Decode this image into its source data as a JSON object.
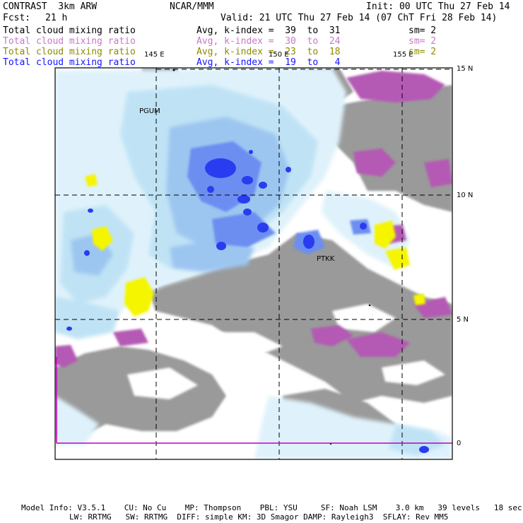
{
  "header": {
    "model": "CONTRAST  3km ARW",
    "center": "NCAR/MMM",
    "init": "Init: 00 UTC Thu 27 Feb 14",
    "fcst_label": "Fcst:",
    "fcst_value": "21 h",
    "valid": "Valid: 21 UTC Thu 27 Feb 14 (07 ChT Fri 28 Feb 14)"
  },
  "legend": [
    {
      "field": "Total cloud mixing ratio",
      "kindex": "Avg, k-index =  39  to  31",
      "sm": "sm= 2",
      "color": "#000000"
    },
    {
      "field": "Total cloud mixing ratio",
      "kindex": "Avg, k-index =  30  to  24",
      "sm": "sm= 2",
      "color": "#c878c8"
    },
    {
      "field": "Total cloud mixing ratio",
      "kindex": "Avg, k-index =  23  to  18",
      "sm": "sm= 2",
      "color": "#8c8c00"
    },
    {
      "field": "Total cloud mixing ratio",
      "kindex": "Avg, k-index =  19  to   4",
      "sm": "",
      "color": "#1414ff"
    }
  ],
  "map": {
    "lon_labels": [
      "145 E",
      "150 E",
      "155 E"
    ],
    "lat_labels": [
      "15 N",
      "10 N",
      "5 N",
      "0"
    ],
    "stations": [
      "PGUM",
      "PTKK"
    ],
    "colors": {
      "ocean_light": "#dff2fb",
      "cloud_light": "#bfe3f5",
      "cloud_mid": "#9cc6f0",
      "cloud_deep": "#6c8ef0",
      "cloud_core": "#2a3cf0",
      "grey_cloud": "#9a9a9a",
      "purple_cloud": "#b45ab4",
      "yellow_cloud": "#f5f500"
    }
  },
  "footer": {
    "line1": "Model Info: V3.5.1    CU: No Cu    MP: Thompson    PBL: YSU     SF: Noah LSM    3.0 km   39 levels   18 sec",
    "line2": "LW: RRTMG   SW: RRTMG  DIFF: simple KM: 3D Smagor DAMP: Rayleigh3  SFLAY: Rev MM5"
  }
}
